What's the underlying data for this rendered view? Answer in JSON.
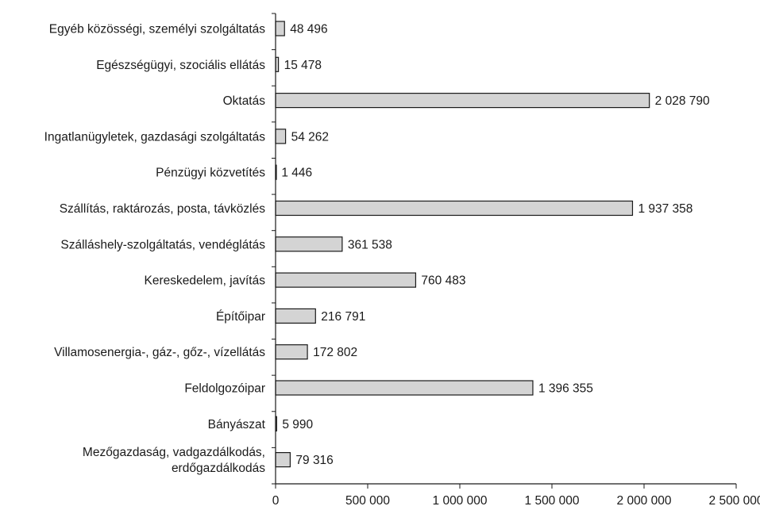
{
  "chart_data": {
    "type": "bar",
    "orientation": "horizontal",
    "title": "",
    "xlabel": "",
    "ylabel": "",
    "xlim": [
      0,
      2500000
    ],
    "x_ticks": [
      0,
      500000,
      1000000,
      1500000,
      2000000,
      2500000
    ],
    "x_tick_labels": [
      "0",
      "500 000",
      "1 000 000",
      "1 500 000",
      "2 000 000",
      "2 500 000"
    ],
    "grid": false,
    "legend": "none",
    "bar_fill": "#d4d4d4",
    "bar_stroke": "#1a1a1a",
    "categories": [
      [
        "Egyéb közösségi, személyi szolgáltatás"
      ],
      [
        "Egészségügyi, szociális ellátás"
      ],
      [
        "Oktatás"
      ],
      [
        "Ingatlanügyletek, gazdasági szolgáltatás"
      ],
      [
        "Pénzügyi közvetítés"
      ],
      [
        "Szállítás, raktározás, posta, távközlés"
      ],
      [
        "Szálláshely-szolgáltatás, vendéglátás"
      ],
      [
        "Kereskedelem, javítás"
      ],
      [
        "Építőipar"
      ],
      [
        "Villamosenergia-, gáz-, gőz-, vízellátás"
      ],
      [
        "Feldolgozóipar"
      ],
      [
        "Bányászat"
      ],
      [
        "Mezőgazdaság, vadgazdálkodás,",
        "erdőgazdálkodás"
      ]
    ],
    "values": [
      48496,
      15478,
      2028790,
      54262,
      1446,
      1937358,
      361538,
      760483,
      216791,
      172802,
      1396355,
      5990,
      79316
    ],
    "value_labels": [
      "48 496",
      "15 478",
      "2 028 790",
      "54 262",
      "1 446",
      "1 937 358",
      "361 538",
      "760 483",
      "216 791",
      "172 802",
      "1 396 355",
      "5 990",
      "79 316"
    ]
  }
}
